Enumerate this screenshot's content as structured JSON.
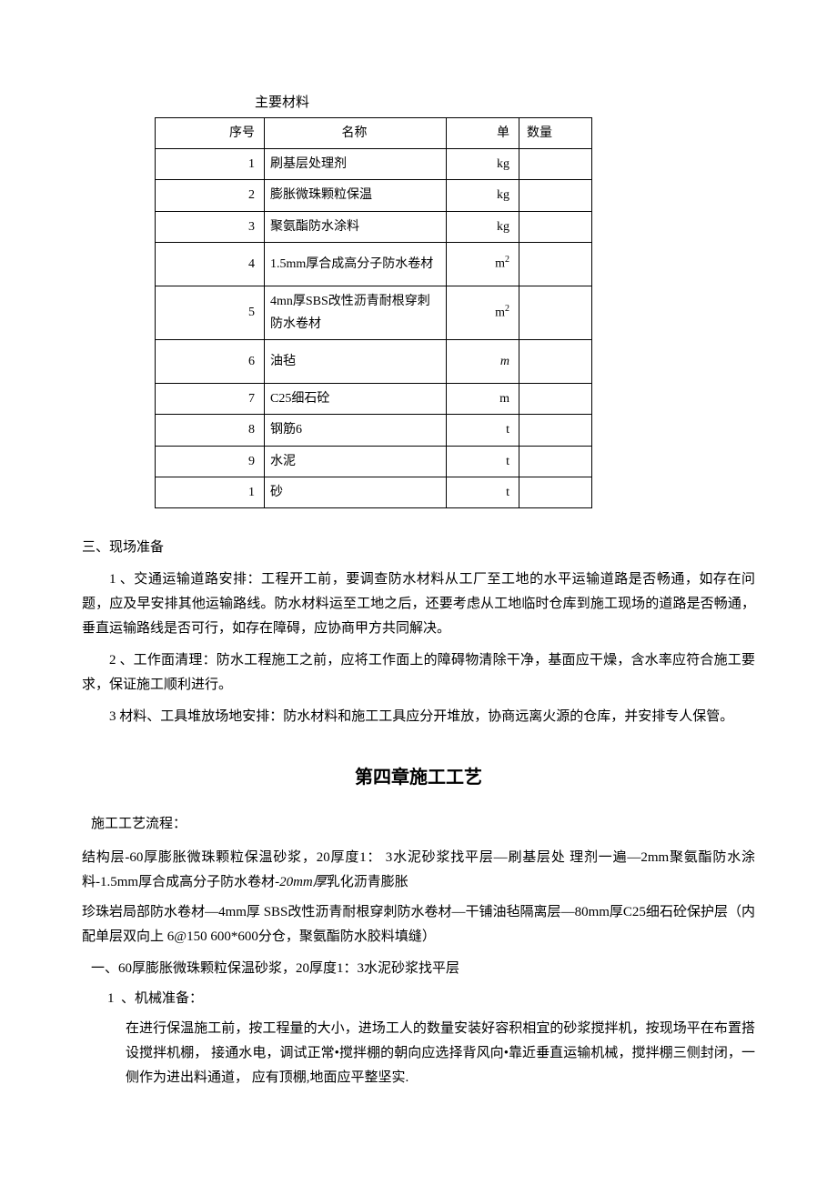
{
  "table": {
    "title": "主要材料",
    "headers": {
      "seq": "序号",
      "name": "名称",
      "unit": "单",
      "qty": "数量"
    },
    "rows": [
      {
        "seq": "1",
        "name": "刷基层处理剂",
        "unit": "kg",
        "qty": ""
      },
      {
        "seq": "2",
        "name": "膨胀微珠颗粒保温",
        "unit": "kg",
        "qty": ""
      },
      {
        "seq": "3",
        "name": "聚氨酯防水涂料",
        "unit": "kg",
        "qty": ""
      },
      {
        "seq": "4",
        "name": "1.5mm厚合成高分子防水卷材",
        "unit": "m²",
        "qty": ""
      },
      {
        "seq": "5",
        "name": "4mn厚SBS改性沥青耐根穿刺防水卷材",
        "unit": "m²",
        "qty": ""
      },
      {
        "seq": "6",
        "name": "油毡",
        "unit": "m",
        "qty": "",
        "unit_italic": true
      },
      {
        "seq": "7",
        "name": "C25细石砼",
        "unit": "m",
        "qty": ""
      },
      {
        "seq": "8",
        "name": "钢筋6",
        "unit": "t",
        "qty": ""
      },
      {
        "seq": "9",
        "name": "水泥",
        "unit": "t",
        "qty": ""
      },
      {
        "seq": "1",
        "name": "砂",
        "unit": "t",
        "qty": ""
      }
    ]
  },
  "section3": {
    "title": "三、现场准备",
    "items": [
      {
        "num": "1",
        "text": "、交通运输道路安排：工程开工前，要调查防水材料从工厂至工地的水平运输道路是否畅通，如存在问题，应及早安排其他运输路线。防水材料运至工地之后，还要考虑从工地临时仓库到施工现场的道路是否畅通，垂直运输路线是否可行，如存在障碍，应协商甲方共同解决。"
      },
      {
        "num": "2",
        "text": "、工作面清理：防水工程施工之前，应将工作面上的障碍物清除干净，基面应干燥，含水率应符合施工要求，保证施工顺利进行。"
      },
      {
        "num": "3",
        "text": "材料、工具堆放场地安排：防水材料和施工工具应分开堆放，协商远离火源的仓库，并安排专人保管。"
      }
    ]
  },
  "chapter": {
    "title": "第四章施工工艺",
    "flow_title": "施工工艺流程：",
    "flow_line1": "结构层-60厚膨胀微珠颗粒保温砂浆，20厚度1：  3水泥砂浆找平层—刷基层处  理剂一遍—2mm聚氨酯防水涂料-1.5mm厚合成高分子防水卷材-",
    "flow_italic": "20mm厚",
    "flow_line1b": "乳化沥青膨胀",
    "flow_line2": "珍珠岩局部防水卷材—4mm厚  SBS改性沥青耐根穿刺防水卷材—干铺油毡隔离层—80mm厚C25细石砼保护层（内配单层双向上  6@150 600*600分仓，聚氨酯防水胶料填缝）",
    "sub1_title": "一、60厚膨胀微珠颗粒保温砂浆，20厚度1：3水泥砂浆找平层",
    "item1_num": "1",
    "item1_label": "、机械准备：",
    "item1_text": "在进行保温施工前，按工程量的大小，进场工人的数量安装好容积相宜的砂浆搅拌机，按现场平在布置搭设搅拌机棚，  接通水电，调试正常•搅拌棚的朝向应选择背风向•靠近垂直运输机械，搅拌棚三侧封闭，一侧作为进出料通道，  应有顶棚,地面应平整坚实."
  }
}
